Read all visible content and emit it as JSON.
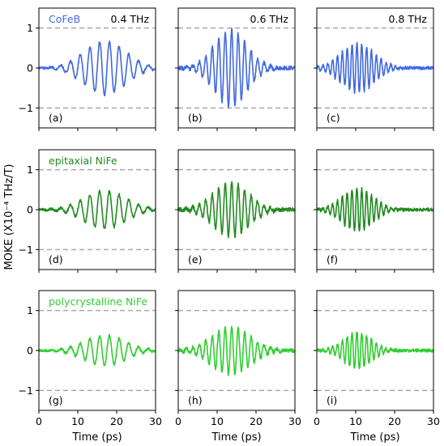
{
  "figure": {
    "ylabel": "MOKE (X10⁻⁴  THz/T)",
    "xlabel": "Time (ps)",
    "xticks": [
      0,
      10,
      20,
      30
    ],
    "yticks": [
      1,
      0,
      -1
    ],
    "ytick_labels": [
      "1",
      "0",
      "−1"
    ],
    "colors": {
      "CoFeB": "#4169e1",
      "epitaxial NiFe": "#228b22",
      "polycrystalline NiFe": "#32cd32",
      "reference_lines": "#aaaaaa"
    }
  },
  "chart_data": [
    {
      "type": "line",
      "panel": "(a)",
      "row_label": "CoFeB",
      "freq_label": "0.4 THz",
      "xlim": [
        0,
        30
      ],
      "ylim": [
        -1.5,
        1.5
      ],
      "reference_lines": [
        1,
        -1
      ],
      "series": [
        {
          "freq_thz": 0.4,
          "peak": 0.68,
          "center_ps": 17,
          "width_ps": 7.5,
          "noise": 0.03,
          "x": [
            0,
            30
          ]
        }
      ]
    },
    {
      "type": "line",
      "panel": "(b)",
      "freq_label": "0.6 THz",
      "xlim": [
        0,
        30
      ],
      "ylim": [
        -1.5,
        1.5
      ],
      "reference_lines": [
        1,
        -1
      ],
      "series": [
        {
          "freq_thz": 0.6,
          "peak": 0.95,
          "center_ps": 13.5,
          "width_ps": 6,
          "noise": 0.05,
          "x": [
            0,
            30
          ]
        }
      ]
    },
    {
      "type": "line",
      "panel": "(c)",
      "freq_label": "0.8 THz",
      "xlim": [
        0,
        30
      ],
      "ylim": [
        -1.5,
        1.5
      ],
      "reference_lines": [
        1,
        -1
      ],
      "series": [
        {
          "freq_thz": 0.8,
          "peak": 0.62,
          "center_ps": 10.5,
          "width_ps": 6,
          "noise": 0.04,
          "x": [
            0,
            30
          ]
        }
      ]
    },
    {
      "type": "line",
      "panel": "(d)",
      "row_label": "epitaxial NiFe",
      "xlim": [
        0,
        30
      ],
      "ylim": [
        -1.5,
        1.5
      ],
      "reference_lines": [
        1,
        -1
      ],
      "series": [
        {
          "freq_thz": 0.4,
          "peak": 0.48,
          "center_ps": 17,
          "width_ps": 7.5,
          "noise": 0.03,
          "x": [
            0,
            30
          ]
        }
      ]
    },
    {
      "type": "line",
      "panel": "(e)",
      "xlim": [
        0,
        30
      ],
      "ylim": [
        -1.5,
        1.5
      ],
      "reference_lines": [
        1,
        -1
      ],
      "series": [
        {
          "freq_thz": 0.6,
          "peak": 0.68,
          "center_ps": 13.5,
          "width_ps": 6.5,
          "noise": 0.05,
          "x": [
            0,
            30
          ]
        }
      ]
    },
    {
      "type": "line",
      "panel": "(f)",
      "xlim": [
        0,
        30
      ],
      "ylim": [
        -1.5,
        1.5
      ],
      "reference_lines": [
        1,
        -1
      ],
      "series": [
        {
          "freq_thz": 0.8,
          "peak": 0.55,
          "center_ps": 10.5,
          "width_ps": 5.5,
          "noise": 0.04,
          "x": [
            0,
            30
          ]
        }
      ]
    },
    {
      "type": "line",
      "panel": "(g)",
      "row_label": "polycrystalline NiFe",
      "xlim": [
        0,
        30
      ],
      "ylim": [
        -1.5,
        1.5
      ],
      "reference_lines": [
        1,
        -1
      ],
      "series": [
        {
          "freq_thz": 0.4,
          "peak": 0.38,
          "center_ps": 17,
          "width_ps": 7.5,
          "noise": 0.03,
          "x": [
            0,
            30
          ]
        }
      ]
    },
    {
      "type": "line",
      "panel": "(h)",
      "xlim": [
        0,
        30
      ],
      "ylim": [
        -1.5,
        1.5
      ],
      "reference_lines": [
        1,
        -1
      ],
      "series": [
        {
          "freq_thz": 0.6,
          "peak": 0.6,
          "center_ps": 13.5,
          "width_ps": 7,
          "noise": 0.05,
          "x": [
            0,
            30
          ]
        }
      ]
    },
    {
      "type": "line",
      "panel": "(i)",
      "xlim": [
        0,
        30
      ],
      "ylim": [
        -1.5,
        1.5
      ],
      "reference_lines": [
        1,
        -1
      ],
      "series": [
        {
          "freq_thz": 0.8,
          "peak": 0.48,
          "center_ps": 10.5,
          "width_ps": 5,
          "noise": 0.04,
          "x": [
            0,
            30
          ]
        }
      ]
    }
  ]
}
